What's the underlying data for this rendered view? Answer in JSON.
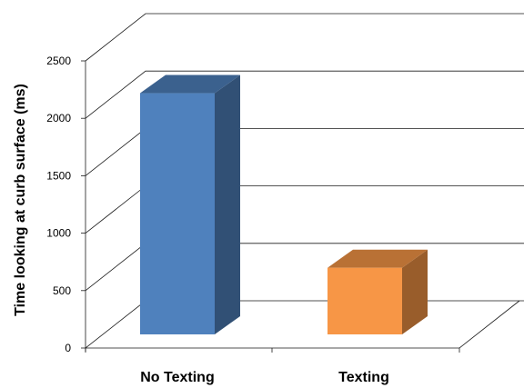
{
  "chart_data": {
    "type": "bar",
    "view": "3d-column",
    "categories": [
      "No Texting",
      "Texting"
    ],
    "values": [
      2100,
      580
    ],
    "colors": [
      "#4f81bd",
      "#f79646"
    ],
    "ylabel": "Time looking at curb surface (ms)",
    "xlabel": "",
    "title": "",
    "ylim": [
      0,
      2500
    ],
    "yticks": [
      "0",
      "500",
      "1000",
      "1500",
      "2000",
      "2500"
    ],
    "grid": true,
    "legend": "none"
  }
}
